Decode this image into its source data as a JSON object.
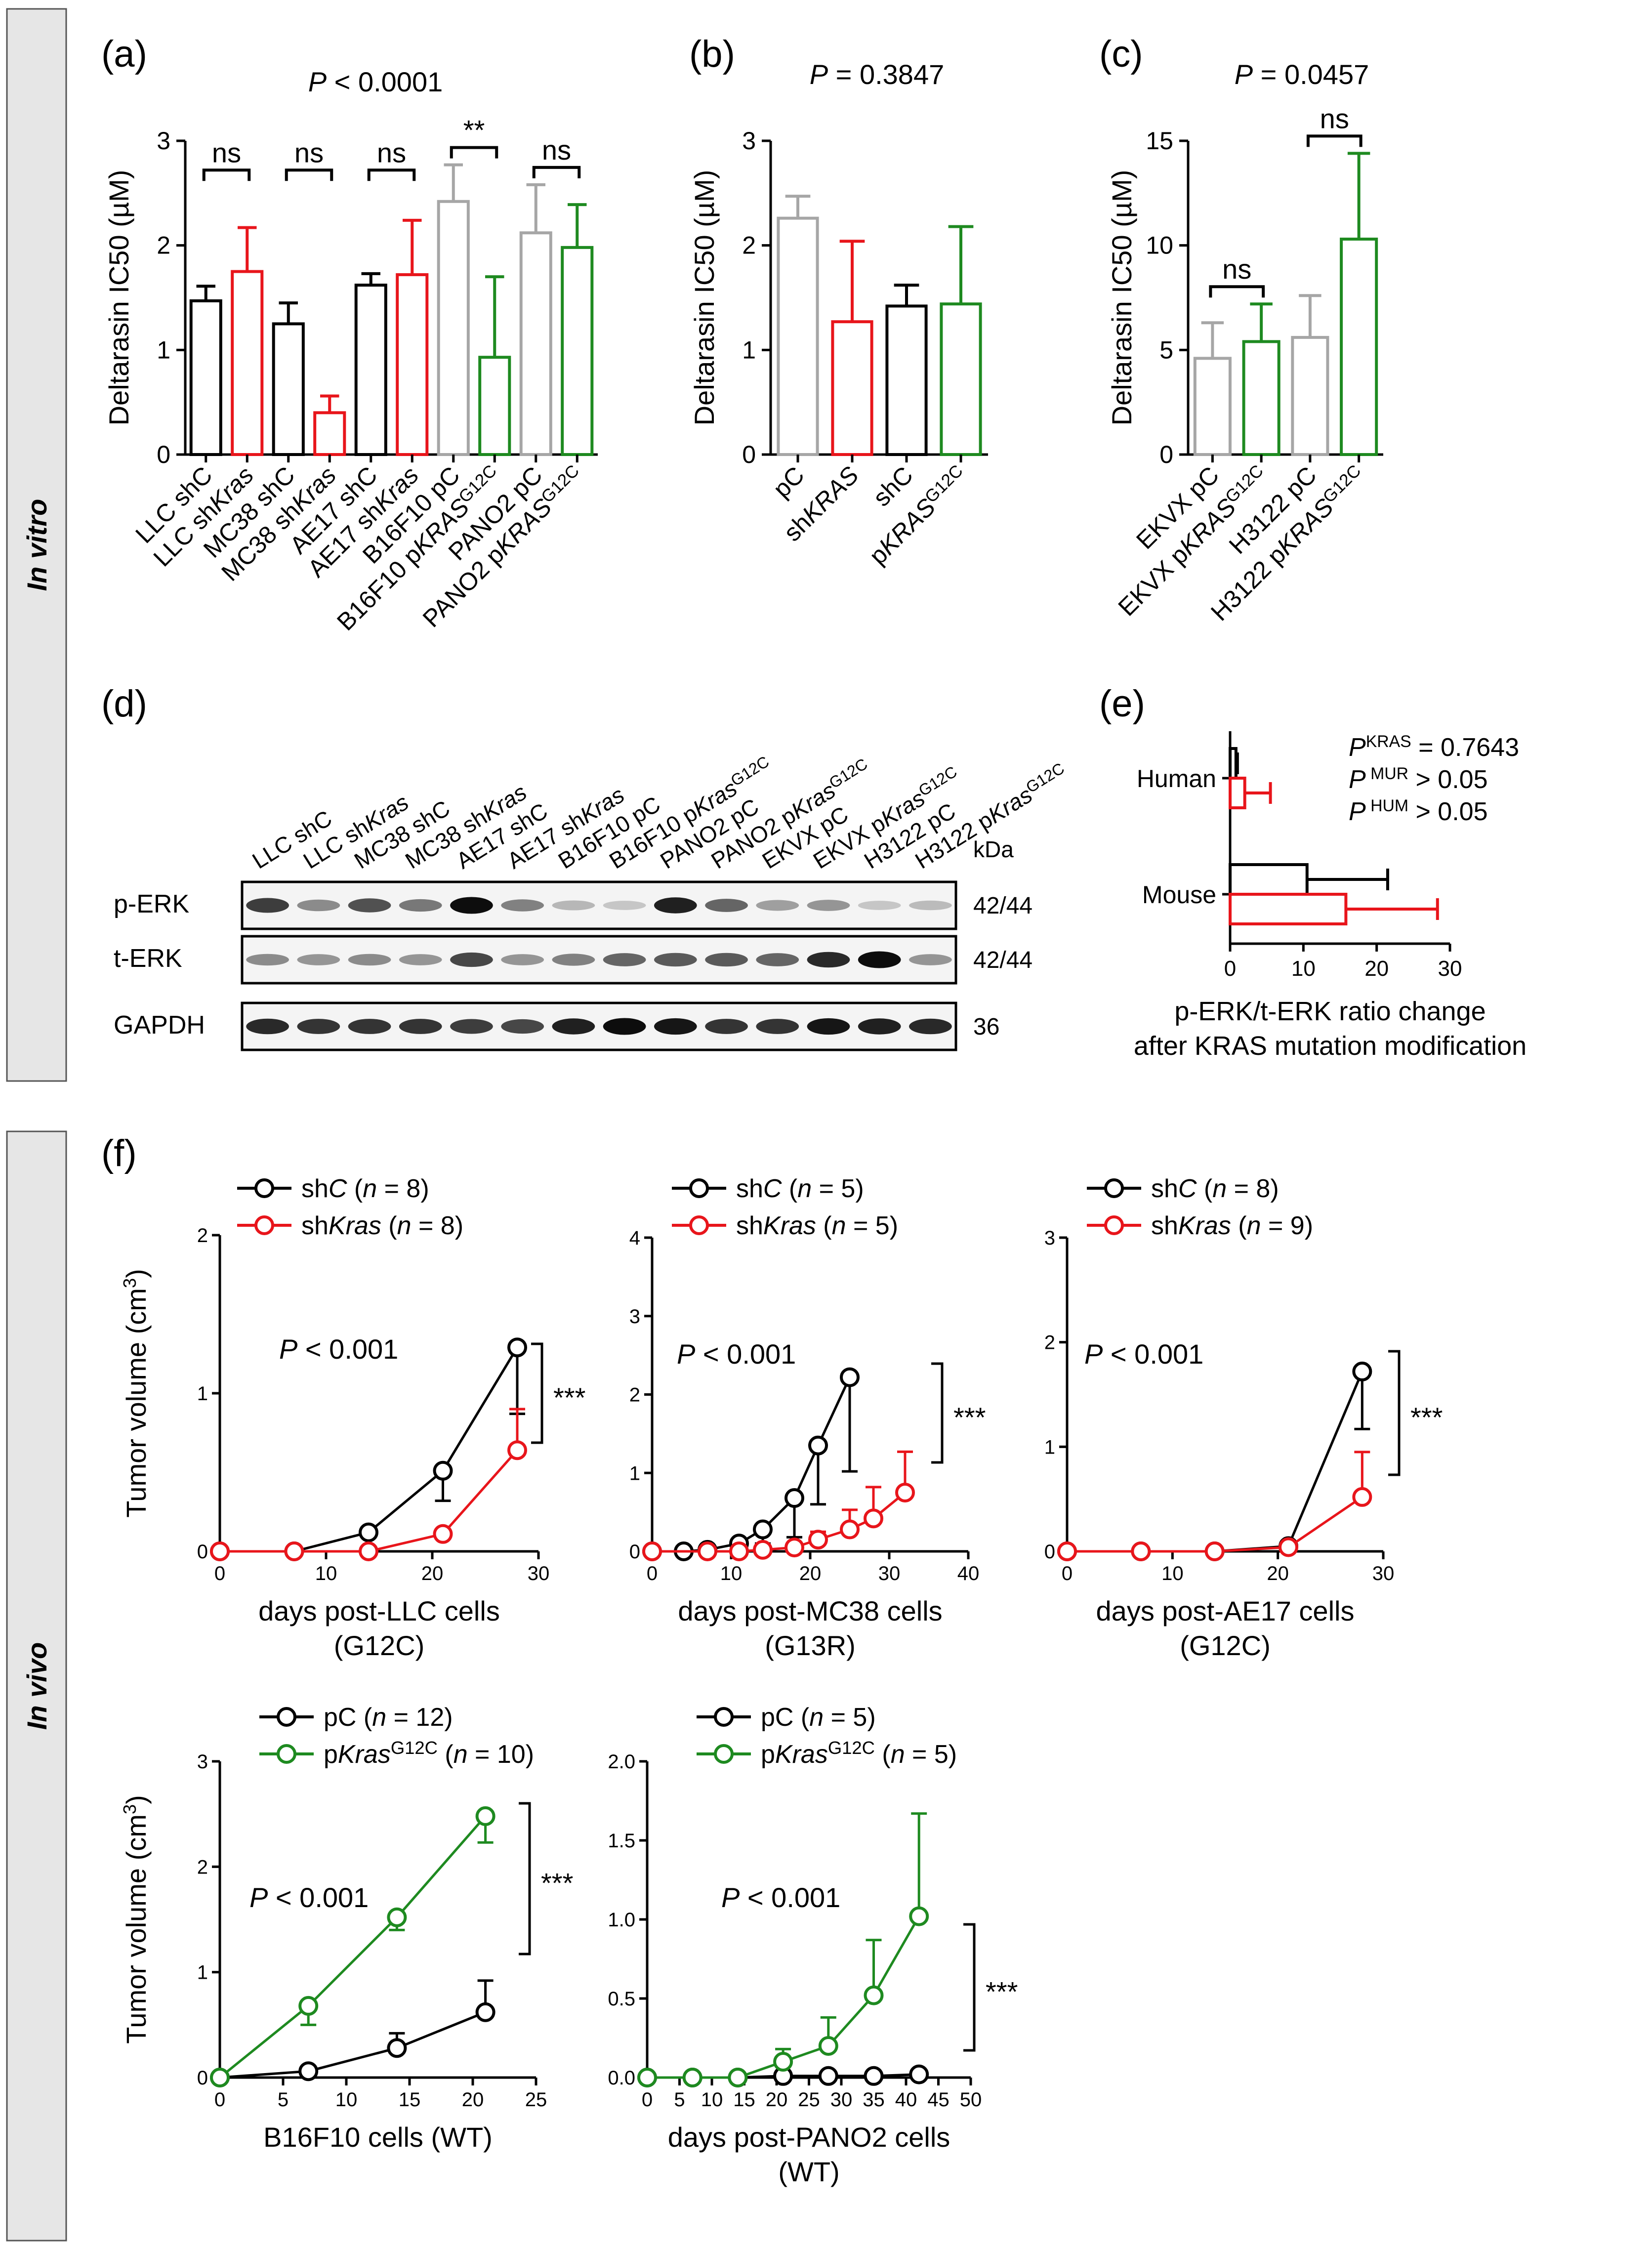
{
  "sections": {
    "in_vitro": "In vitro",
    "in_vivo": "In vivo"
  },
  "western": {
    "panel_label": "(d)",
    "lanes": [
      "LLC shC",
      "LLC shKras",
      "MC38 shC",
      "MC38 shKras",
      "AE17 shC",
      "AE17 shKras",
      "B16F10 pC",
      "B16F10 pKrasG12C",
      "PANO2 pC",
      "PANO2 pKrasG12C",
      "EKVX pC",
      "EKVX pKrasG12C",
      "H3122 pC",
      "H3122 pKrasG12C"
    ],
    "rows": [
      "p-ERK",
      "t-ERK",
      "GAPDH"
    ],
    "kda_header": "kDa",
    "kda": [
      "42/44",
      "42/44",
      "36"
    ]
  },
  "chart_data": [
    {
      "id": "a",
      "panel_label": "(a)",
      "type": "bar",
      "title": "P < 0.0001",
      "ylabel": "Deltarasin IC50 (µM)",
      "ylim": [
        0,
        3
      ],
      "yticks": [
        0,
        1,
        2,
        3
      ],
      "categories": [
        "LLC shC",
        "LLC shKras",
        "MC38 shC",
        "MC38 shKras",
        "AE17 shC",
        "AE17 shKras",
        "B16F10 pC",
        "B16F10 pKRASG12C",
        "PANO2 pC",
        "PANO2 pKRASG12C"
      ],
      "values": [
        1.47,
        1.75,
        1.25,
        0.4,
        1.62,
        1.72,
        2.42,
        0.93,
        2.12,
        1.98
      ],
      "errors": [
        0.14,
        0.42,
        0.2,
        0.16,
        0.11,
        0.52,
        0.35,
        0.77,
        0.46,
        0.41
      ],
      "colors": [
        "#000000",
        "#e8151b",
        "#000000",
        "#e8151b",
        "#000000",
        "#e8151b",
        "#a6a6a6",
        "#1e8a20",
        "#a6a6a6",
        "#1e8a20"
      ],
      "comparisons": [
        {
          "pair": [
            0,
            1
          ],
          "label": "ns"
        },
        {
          "pair": [
            2,
            3
          ],
          "label": "ns"
        },
        {
          "pair": [
            4,
            5
          ],
          "label": "ns"
        },
        {
          "pair": [
            6,
            7
          ],
          "label": "**"
        },
        {
          "pair": [
            8,
            9
          ],
          "label": "ns"
        }
      ]
    },
    {
      "id": "b",
      "panel_label": "(b)",
      "type": "bar",
      "title": "P = 0.3847",
      "ylabel": "Deltarasin IC50 (µM)",
      "ylim": [
        0,
        3
      ],
      "yticks": [
        0,
        1,
        2,
        3
      ],
      "categories": [
        "pC",
        "shKRAS",
        "shC",
        "pKRASG12C"
      ],
      "values": [
        2.26,
        1.27,
        1.42,
        1.44
      ],
      "errors": [
        0.21,
        0.77,
        0.2,
        0.74
      ],
      "colors": [
        "#a6a6a6",
        "#e8151b",
        "#000000",
        "#1e8a20"
      ]
    },
    {
      "id": "c",
      "panel_label": "(c)",
      "type": "bar",
      "title": "P = 0.0457",
      "ylabel": "Deltarasin IC50 (µM)",
      "ylim": [
        0,
        15
      ],
      "yticks": [
        0,
        5,
        10,
        15
      ],
      "categories": [
        "EKVX pC",
        "EKVX pKRASG12C",
        "H3122 pC",
        "H3122 pKRASG12C"
      ],
      "values": [
        4.6,
        5.4,
        5.6,
        10.3
      ],
      "errors": [
        1.7,
        1.8,
        2.0,
        4.1
      ],
      "colors": [
        "#a6a6a6",
        "#1e8a20",
        "#a6a6a6",
        "#1e8a20"
      ],
      "comparisons": [
        {
          "pair": [
            0,
            1
          ],
          "label": "ns"
        },
        {
          "pair": [
            2,
            3
          ],
          "label": "ns"
        }
      ]
    },
    {
      "id": "e",
      "panel_label": "(e)",
      "type": "bar",
      "orientation": "horizontal",
      "xlabel": "p-ERK/t-ERK ratio change",
      "xlabel2": "after KRAS mutation modification",
      "xlim": [
        0,
        30
      ],
      "xticks": [
        0,
        10,
        20,
        30
      ],
      "categories": [
        "Human",
        "Mouse"
      ],
      "series": [
        {
          "color": "#000000",
          "values": [
            0.8,
            10.5
          ],
          "errors": [
            0.2,
            11.0
          ]
        },
        {
          "color": "#e8151b",
          "values": [
            2.0,
            15.8
          ],
          "errors": [
            3.5,
            12.5
          ]
        }
      ],
      "annotations": [
        {
          "P": "P",
          "sup": "KRAS",
          "rest": " = 0.7643"
        },
        {
          "P": "P",
          "sup": " MUR",
          "rest": " > 0.05"
        },
        {
          "P": "P",
          "sup": " HUM",
          "rest": " > 0.05"
        }
      ]
    },
    {
      "id": "f1",
      "panel_label": "(f)",
      "type": "line",
      "ylabel": "Tumor volume (cm3)",
      "xlabel": "days post-LLC cells",
      "xlabel2": "(G12C)",
      "xlim": [
        0,
        30
      ],
      "xticks": [
        0,
        10,
        20,
        30
      ],
      "ylim": [
        0,
        2
      ],
      "yticks": [
        0,
        1,
        2
      ],
      "pvalue": "P < 0.001",
      "sig": "***",
      "series": [
        {
          "name": "shC (n = 8)",
          "color": "#000000",
          "x": [
            0,
            7,
            14,
            21,
            28
          ],
          "y": [
            0,
            0,
            0.12,
            0.51,
            1.29
          ],
          "err": [
            0,
            0,
            0.03,
            0.19,
            0.42
          ]
        },
        {
          "name": "shKras (n = 8)",
          "color": "#e8151b",
          "x": [
            0,
            7,
            14,
            21,
            28
          ],
          "y": [
            0,
            0,
            0,
            0.11,
            0.64
          ],
          "err": [
            0,
            0,
            0,
            0.02,
            0.26
          ]
        }
      ]
    },
    {
      "id": "f2",
      "type": "line",
      "xlabel": "days post-MC38 cells",
      "xlabel2": "(G13R)",
      "xlim": [
        0,
        40
      ],
      "xticks": [
        0,
        10,
        20,
        30,
        40
      ],
      "ylim": [
        0,
        4
      ],
      "yticks": [
        0,
        1,
        2,
        3,
        4
      ],
      "pvalue": "P < 0.001",
      "sig": "***",
      "series": [
        {
          "name": "shC (n = 5)",
          "color": "#000000",
          "x": [
            0,
            4,
            7,
            11,
            14,
            18,
            21,
            25
          ],
          "y": [
            0,
            0,
            0.02,
            0.1,
            0.28,
            0.68,
            1.35,
            2.22
          ],
          "err": [
            0,
            0,
            0,
            0.05,
            0.18,
            0.5,
            0.75,
            1.2
          ]
        },
        {
          "name": "shKras (n = 5)",
          "color": "#e8151b",
          "x": [
            0,
            7,
            11,
            14,
            18,
            21,
            25,
            28,
            32
          ],
          "y": [
            0,
            0,
            0,
            0.02,
            0.05,
            0.15,
            0.28,
            0.42,
            0.75
          ],
          "err": [
            0,
            0,
            0,
            0.02,
            0.05,
            0.1,
            0.25,
            0.4,
            0.52
          ]
        }
      ]
    },
    {
      "id": "f3",
      "type": "line",
      "xlabel": "days post-AE17 cells",
      "xlabel2": "(G12C)",
      "xlim": [
        0,
        30
      ],
      "xticks": [
        0,
        10,
        20,
        30
      ],
      "ylim": [
        0,
        3
      ],
      "yticks": [
        0,
        1,
        2,
        3
      ],
      "pvalue": "P < 0.001",
      "sig": "***",
      "series": [
        {
          "name": "shC (n = 8)",
          "color": "#000000",
          "x": [
            0,
            7,
            14,
            21,
            28
          ],
          "y": [
            0,
            0,
            0,
            0.05,
            1.72
          ],
          "err": [
            0,
            0,
            0,
            0.05,
            0.55
          ]
        },
        {
          "name": "shKras (n = 9)",
          "color": "#e8151b",
          "x": [
            0,
            7,
            14,
            21,
            28
          ],
          "y": [
            0,
            0,
            0,
            0.04,
            0.52
          ],
          "err": [
            0,
            0,
            0,
            0.03,
            0.43
          ]
        }
      ]
    },
    {
      "id": "f4",
      "type": "line",
      "ylabel": "Tumor volume (cm3)",
      "xlabel": "B16F10 cells (WT)",
      "xlim": [
        0,
        25
      ],
      "xticks": [
        0,
        5,
        10,
        15,
        20,
        25
      ],
      "ylim": [
        0,
        3
      ],
      "yticks": [
        0,
        1,
        2,
        3
      ],
      "pvalue": "P < 0.001",
      "sig": "***",
      "series": [
        {
          "name": "pC (n = 12)",
          "color": "#000000",
          "x": [
            0,
            7,
            14,
            21
          ],
          "y": [
            0,
            0.06,
            0.28,
            0.62
          ],
          "err": [
            0,
            0.02,
            0.14,
            0.3
          ]
        },
        {
          "name": "pKrasG12C (n = 10)",
          "color": "#1e8a20",
          "x": [
            0,
            7,
            14,
            21
          ],
          "y": [
            0,
            0.68,
            1.52,
            2.48
          ],
          "err": [
            0,
            0.18,
            0.12,
            0.25
          ]
        }
      ]
    },
    {
      "id": "f5",
      "type": "line",
      "xlabel": "days post-PANO2 cells",
      "xlabel2": "(WT)",
      "xlim": [
        0,
        50
      ],
      "xticks": [
        0,
        5,
        10,
        15,
        20,
        25,
        30,
        35,
        40,
        45,
        50
      ],
      "ylim": [
        0,
        2
      ],
      "yticks": [
        0,
        0.5,
        1,
        1.5,
        2
      ],
      "ytick_labels": [
        "0.0",
        "0.5",
        "1.0",
        "1.5",
        "2.0"
      ],
      "pvalue": "P < 0.001",
      "sig": "***",
      "series": [
        {
          "name": "pC (n = 5)",
          "color": "#000000",
          "x": [
            0,
            7,
            14,
            21,
            28,
            35,
            42
          ],
          "y": [
            0,
            0,
            0,
            0.01,
            0.01,
            0.01,
            0.02
          ],
          "err": [
            0,
            0,
            0,
            0.01,
            0.01,
            0.01,
            0.01
          ]
        },
        {
          "name": "pKrasG12C (n = 5)",
          "color": "#1e8a20",
          "x": [
            0,
            7,
            14,
            21,
            28,
            35,
            42
          ],
          "y": [
            0,
            0,
            0,
            0.1,
            0.2,
            0.52,
            1.02
          ],
          "err": [
            0,
            0,
            0,
            0.08,
            0.18,
            0.35,
            0.65
          ]
        }
      ]
    }
  ]
}
